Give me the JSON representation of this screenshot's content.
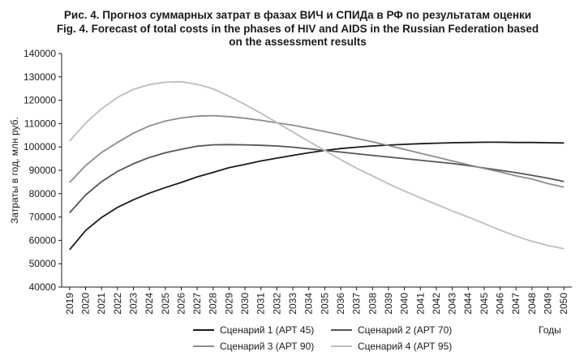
{
  "chart_data": {
    "type": "line",
    "title_ru": "Рис. 4. Прогноз суммарных затрат в фазах ВИЧ и СПИДа в РФ по результатам оценки",
    "title_en_line1": "Fig. 4. Forecast of total costs in the phases of HIV and AIDS in the Russian Federation based",
    "title_en_line2": "on the assessment results",
    "ylabel": "Затраты в год, млн руб.",
    "xlabel": "Годы",
    "ylim": [
      40000,
      140000
    ],
    "yticks": [
      40000,
      50000,
      60000,
      70000,
      80000,
      90000,
      100000,
      110000,
      120000,
      130000,
      140000
    ],
    "ytick_labels": [
      "40000",
      "50000",
      "60000",
      "70000",
      "80000",
      "90000",
      "100000",
      "110000",
      "120000",
      "130000",
      "140000"
    ],
    "x": [
      "2019",
      "2020",
      "2021",
      "2022",
      "2023",
      "2024",
      "2025",
      "2026",
      "2027",
      "2028",
      "2029",
      "2030",
      "2031",
      "2032",
      "2033",
      "2034",
      "2035",
      "2036",
      "2037",
      "2038",
      "2039",
      "2040",
      "2041",
      "2042",
      "2043",
      "2044",
      "2045",
      "2046",
      "2047",
      "2048",
      "2049",
      "2050"
    ],
    "grid": false,
    "legend_position": "bottom",
    "series": [
      {
        "name": "Сценарий  1 (АРТ 45)",
        "color": "#1a1a1a",
        "values": [
          56000,
          64200,
          69800,
          74100,
          77400,
          80200,
          82600,
          84800,
          87200,
          89100,
          91100,
          92500,
          94000,
          95200,
          96400,
          97500,
          98500,
          99300,
          99900,
          100400,
          100800,
          101100,
          101400,
          101600,
          101800,
          101900,
          102000,
          102000,
          101900,
          101900,
          101800,
          101700
        ]
      },
      {
        "name": "Сценарий  2 (АРТ 70)",
        "color": "#555555",
        "values": [
          71800,
          79400,
          85100,
          89500,
          92800,
          95500,
          97500,
          99000,
          100300,
          100900,
          101000,
          100900,
          100700,
          100400,
          99900,
          99200,
          98500,
          97800,
          97100,
          96400,
          95700,
          95000,
          94300,
          93600,
          92900,
          92000,
          91000,
          90000,
          89000,
          87800,
          86600,
          85200
        ]
      },
      {
        "name": "Сценарий  3 (АРТ 90)",
        "color": "#8c8c8c",
        "values": [
          84800,
          92000,
          97600,
          101900,
          105900,
          109000,
          111100,
          112400,
          113200,
          113400,
          113000,
          112300,
          111400,
          110300,
          109300,
          108000,
          106600,
          105200,
          103600,
          102200,
          100600,
          99000,
          97300,
          95700,
          94000,
          92400,
          90800,
          89300,
          87600,
          86300,
          84300,
          82800
        ]
      },
      {
        "name": "Сценарий  4 (АРТ 95)",
        "color": "#bdbdbd",
        "values": [
          102500,
          110200,
          116300,
          121200,
          124700,
          126700,
          127700,
          127900,
          126800,
          124900,
          121700,
          118200,
          114400,
          110400,
          106400,
          102400,
          98500,
          94600,
          90900,
          87600,
          84200,
          81100,
          78200,
          75400,
          72600,
          70000,
          67200,
          64400,
          61800,
          59600,
          57800,
          56400
        ]
      }
    ]
  }
}
